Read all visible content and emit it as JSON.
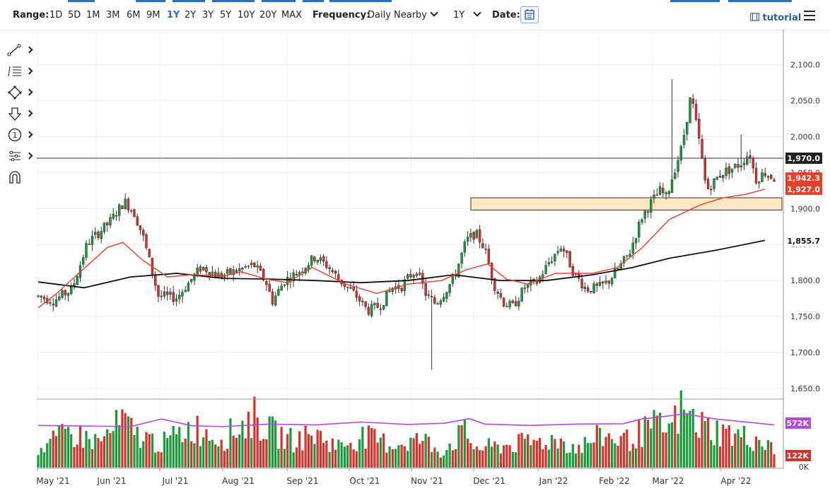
{
  "toolbar": {
    "range_label": "Range:",
    "ranges": [
      "1D",
      "5D",
      "1M",
      "3M",
      "6M",
      "9M",
      "1Y",
      "2Y",
      "3Y",
      "5Y",
      "10Y",
      "20Y",
      "MAX"
    ],
    "active_range": "1Y",
    "frequency_label": "Frequency:",
    "frequency_value": "Daily Nearby",
    "period_value": "1Y",
    "date_label": "Date:",
    "tutorial_label": "tutorial"
  },
  "tools": [
    "line-tool",
    "fib-tool",
    "shape-tool",
    "arrow-tool",
    "annotation-tool",
    "measure-tool",
    "magnet-tool"
  ],
  "chart_data": [
    {
      "type": "candlestick",
      "grid": true,
      "y_ticks": [
        "2,100.0",
        "2,050.0",
        "2,000.0",
        "1,950.0",
        "1,900.0",
        "1,850.0",
        "1,800.0",
        "1,750.0",
        "1,700.0",
        "1,650.0"
      ],
      "ylim": [
        1630,
        2130
      ],
      "x_labels": [
        "May '21",
        "Jun '21",
        "Jul '21",
        "Aug '21",
        "Sep '21",
        "Oct '21",
        "Nov '21",
        "Dec '21",
        "Jan '22",
        "Feb '22",
        "Mar '22",
        "Apr '22"
      ],
      "bar_count": 246,
      "colors": {
        "up": "#1a9a3a",
        "down": "#d6322b",
        "ma50": "#e8402a",
        "ma200": "#111111",
        "volume_line": "#b44ad9",
        "support_zone": "#fde8c2"
      },
      "ohlc_points": [
        [
          0,
          1778
        ],
        [
          10,
          1772
        ],
        [
          22,
          1788
        ],
        [
          32,
          1852
        ],
        [
          46,
          1880
        ],
        [
          56,
          1910
        ],
        [
          62,
          1896
        ],
        [
          68,
          1862
        ],
        [
          78,
          1779
        ],
        [
          90,
          1776
        ],
        [
          106,
          1819
        ],
        [
          118,
          1806
        ],
        [
          128,
          1813
        ],
        [
          140,
          1822
        ],
        [
          148,
          1798
        ],
        [
          152,
          1771
        ],
        [
          160,
          1800
        ],
        [
          168,
          1810
        ],
        [
          180,
          1833
        ],
        [
          188,
          1820
        ],
        [
          196,
          1800
        ],
        [
          206,
          1780
        ],
        [
          214,
          1758
        ],
        [
          222,
          1765
        ],
        [
          230,
          1790
        ],
        [
          236,
          1792
        ],
        [
          242,
          1808
        ],
        [
          246,
          1814
        ],
        [
          252,
          1780
        ],
        [
          258,
          1768
        ],
        [
          262,
          1778
        ],
        [
          270,
          1803
        ],
        [
          278,
          1855
        ],
        [
          284,
          1866
        ],
        [
          290,
          1845
        ],
        [
          296,
          1795
        ],
        [
          302,
          1770
        ],
        [
          308,
          1763
        ],
        [
          316,
          1790
        ],
        [
          324,
          1798
        ],
        [
          332,
          1826
        ],
        [
          340,
          1849
        ],
        [
          348,
          1810
        ],
        [
          356,
          1788
        ],
        [
          364,
          1790
        ],
        [
          370,
          1798
        ],
        [
          378,
          1820
        ],
        [
          384,
          1838
        ],
        [
          392,
          1888
        ],
        [
          398,
          1908
        ],
        [
          404,
          1925
        ],
        [
          408,
          1915
        ],
        [
          412,
          1945
        ],
        [
          418,
          1985
        ],
        [
          424,
          2058
        ],
        [
          430,
          1985
        ],
        [
          434,
          1925
        ],
        [
          438,
          1935
        ],
        [
          444,
          1950
        ],
        [
          450,
          1955
        ],
        [
          456,
          1962
        ],
        [
          462,
          1978
        ],
        [
          466,
          1940
        ],
        [
          472,
          1950
        ],
        [
          478,
          1942
        ]
      ],
      "ma50_points": [
        [
          0,
          1762
        ],
        [
          12,
          1782
        ],
        [
          30,
          1817
        ],
        [
          45,
          1846
        ],
        [
          55,
          1853
        ],
        [
          68,
          1828
        ],
        [
          84,
          1805
        ],
        [
          100,
          1808
        ],
        [
          120,
          1806
        ],
        [
          132,
          1812
        ],
        [
          148,
          1802
        ],
        [
          162,
          1797
        ],
        [
          178,
          1818
        ],
        [
          200,
          1795
        ],
        [
          220,
          1782
        ],
        [
          240,
          1795
        ],
        [
          262,
          1800
        ],
        [
          278,
          1815
        ],
        [
          292,
          1823
        ],
        [
          304,
          1802
        ],
        [
          318,
          1795
        ],
        [
          336,
          1810
        ],
        [
          360,
          1810
        ],
        [
          376,
          1818
        ],
        [
          392,
          1845
        ],
        [
          410,
          1885
        ],
        [
          430,
          1905
        ],
        [
          445,
          1915
        ],
        [
          460,
          1920
        ],
        [
          472,
          1927
        ]
      ],
      "ma200_points": [
        [
          0,
          1798
        ],
        [
          30,
          1790
        ],
        [
          60,
          1805
        ],
        [
          90,
          1810
        ],
        [
          120,
          1803
        ],
        [
          150,
          1802
        ],
        [
          180,
          1800
        ],
        [
          210,
          1797
        ],
        [
          240,
          1800
        ],
        [
          270,
          1808
        ],
        [
          300,
          1800
        ],
        [
          330,
          1800
        ],
        [
          360,
          1808
        ],
        [
          386,
          1818
        ],
        [
          410,
          1831
        ],
        [
          440,
          1842
        ],
        [
          472,
          1855.7
        ]
      ],
      "annotations": [
        {
          "label": "1,970.0",
          "value": 1970.0,
          "kind": "horizontal-line"
        },
        {
          "label": "1,942.3",
          "value": 1942.3,
          "kind": "last-price"
        },
        {
          "label": "1,927.0",
          "value": 1927.0,
          "kind": "ma50-value"
        },
        {
          "label": "1,855.7",
          "value": 1855.7,
          "kind": "ma200-value"
        }
      ],
      "support_zone": [
        1898,
        1915
      ]
    },
    {
      "type": "bar",
      "series": [
        {
          "name": "volume"
        }
      ],
      "y_ticks": [
        "572K",
        "122K",
        "0K"
      ],
      "volume_line_last": "572K",
      "volume_last": "122K",
      "volume_points": [
        [
          0,
          45
        ],
        [
          20,
          90
        ],
        [
          40,
          65
        ],
        [
          55,
          120
        ],
        [
          62,
          88
        ],
        [
          80,
          60
        ],
        [
          100,
          105
        ],
        [
          120,
          75
        ],
        [
          140,
          130
        ],
        [
          150,
          95
        ],
        [
          165,
          70
        ],
        [
          180,
          85
        ],
        [
          195,
          55
        ],
        [
          210,
          80
        ],
        [
          230,
          60
        ],
        [
          250,
          72
        ],
        [
          262,
          40
        ],
        [
          276,
          90
        ],
        [
          285,
          50
        ],
        [
          300,
          55
        ],
        [
          320,
          65
        ],
        [
          338,
          72
        ],
        [
          350,
          50
        ],
        [
          366,
          82
        ],
        [
          382,
          70
        ],
        [
          400,
          105
        ],
        [
          410,
          96
        ],
        [
          418,
          148
        ],
        [
          428,
          112
        ],
        [
          440,
          95
        ],
        [
          456,
          80
        ],
        [
          470,
          70
        ],
        [
          478,
          40
        ]
      ],
      "volume_avg_points": [
        [
          0,
          572
        ],
        [
          60,
          565
        ],
        [
          80,
          610
        ],
        [
          100,
          570
        ],
        [
          120,
          565
        ],
        [
          150,
          580
        ],
        [
          180,
          575
        ],
        [
          210,
          592
        ],
        [
          240,
          578
        ],
        [
          264,
          585
        ],
        [
          280,
          612
        ],
        [
          290,
          580
        ],
        [
          320,
          572
        ],
        [
          350,
          580
        ],
        [
          380,
          582
        ],
        [
          392,
          610
        ],
        [
          404,
          622
        ],
        [
          420,
          640
        ],
        [
          440,
          610
        ],
        [
          478,
          575
        ]
      ]
    }
  ]
}
